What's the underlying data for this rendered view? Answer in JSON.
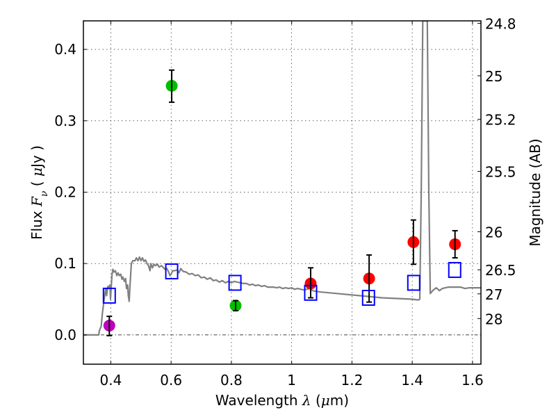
{
  "chart_data": {
    "type": "scatter",
    "title": "",
    "xlabel": "Wavelength  λ (μm)",
    "xlabel_parts": {
      "text": "Wavelength  ",
      "symbol": "λ",
      "unit_open": " (",
      "unit_mu": "μ",
      "unit_rest": "m)"
    },
    "ylabel": "Flux  Fν  ( μJy )",
    "ylabel_parts": {
      "text": "Flux  ",
      "symbol": "F",
      "sub": "ν",
      "unit_open": "  ( ",
      "unit_mu": "μ",
      "unit_rest": "Jy )"
    },
    "ylabel_right": "Magnitude (AB)",
    "xlim": [
      0.309,
      1.628
    ],
    "ylim": [
      -0.041,
      0.44
    ],
    "grid": true,
    "x_ticks": [
      {
        "value": 0.4,
        "label": "0.4"
      },
      {
        "value": 0.6,
        "label": "0.6"
      },
      {
        "value": 0.8,
        "label": "0.8"
      },
      {
        "value": 1.0,
        "label": "1"
      },
      {
        "value": 1.2,
        "label": "1.2"
      },
      {
        "value": 1.4,
        "label": "1.4"
      },
      {
        "value": 1.6,
        "label": "1.6"
      }
    ],
    "y_ticks": [
      {
        "value": 0.0,
        "label": "0.0"
      },
      {
        "value": 0.1,
        "label": "0.1"
      },
      {
        "value": 0.2,
        "label": "0.2"
      },
      {
        "value": 0.3,
        "label": "0.3"
      },
      {
        "value": 0.4,
        "label": "0.4"
      }
    ],
    "right_axis": {
      "conversion": "flux_uJy = 10^((23.9 - mag)/2.5)",
      "zeropoint": 23.9,
      "ticks": [
        {
          "mag": 24.8,
          "label": "24.8"
        },
        {
          "mag": 25.0,
          "label": "25"
        },
        {
          "mag": 25.2,
          "label": "25.2"
        },
        {
          "mag": 25.5,
          "label": "25.5"
        },
        {
          "mag": 26.0,
          "label": "26"
        },
        {
          "mag": 26.5,
          "label": "26.5"
        },
        {
          "mag": 27.0,
          "label": "27"
        },
        {
          "mag": 28.0,
          "label": "28"
        }
      ]
    },
    "zero_line": {
      "value": 0.0,
      "style": "dash-dot",
      "color": "#000000"
    },
    "series": [
      {
        "name": "model spectrum",
        "kind": "line",
        "color": "#808080",
        "points": [
          [
            0.309,
            0.0
          ],
          [
            0.35,
            0.0
          ],
          [
            0.36,
            0.0
          ],
          [
            0.362,
            0.006
          ],
          [
            0.368,
            0.012
          ],
          [
            0.372,
            0.03
          ],
          [
            0.378,
            0.05
          ],
          [
            0.383,
            0.065
          ],
          [
            0.386,
            0.055
          ],
          [
            0.39,
            0.068
          ],
          [
            0.394,
            0.067
          ],
          [
            0.397,
            0.07
          ],
          [
            0.399,
            0.05
          ],
          [
            0.401,
            0.065
          ],
          [
            0.404,
            0.085
          ],
          [
            0.407,
            0.092
          ],
          [
            0.41,
            0.088
          ],
          [
            0.415,
            0.09
          ],
          [
            0.42,
            0.083
          ],
          [
            0.424,
            0.087
          ],
          [
            0.428,
            0.083
          ],
          [
            0.433,
            0.085
          ],
          [
            0.437,
            0.078
          ],
          [
            0.44,
            0.081
          ],
          [
            0.445,
            0.075
          ],
          [
            0.449,
            0.079
          ],
          [
            0.452,
            0.065
          ],
          [
            0.456,
            0.07
          ],
          [
            0.458,
            0.055
          ],
          [
            0.461,
            0.047
          ],
          [
            0.463,
            0.065
          ],
          [
            0.468,
            0.1
          ],
          [
            0.473,
            0.104
          ],
          [
            0.48,
            0.104
          ],
          [
            0.485,
            0.108
          ],
          [
            0.49,
            0.104
          ],
          [
            0.495,
            0.109
          ],
          [
            0.5,
            0.104
          ],
          [
            0.505,
            0.108
          ],
          [
            0.51,
            0.103
          ],
          [
            0.515,
            0.105
          ],
          [
            0.52,
            0.1
          ],
          [
            0.525,
            0.097
          ],
          [
            0.53,
            0.09
          ],
          [
            0.533,
            0.1
          ],
          [
            0.538,
            0.094
          ],
          [
            0.543,
            0.099
          ],
          [
            0.548,
            0.097
          ],
          [
            0.555,
            0.099
          ],
          [
            0.56,
            0.095
          ],
          [
            0.568,
            0.097
          ],
          [
            0.575,
            0.094
          ],
          [
            0.58,
            0.092
          ],
          [
            0.586,
            0.093
          ],
          [
            0.592,
            0.088
          ],
          [
            0.596,
            0.083
          ],
          [
            0.6,
            0.085
          ],
          [
            0.605,
            0.09
          ],
          [
            0.612,
            0.09
          ],
          [
            0.62,
            0.091
          ],
          [
            0.626,
            0.087
          ],
          [
            0.632,
            0.093
          ],
          [
            0.64,
            0.089
          ],
          [
            0.65,
            0.088
          ],
          [
            0.66,
            0.085
          ],
          [
            0.67,
            0.086
          ],
          [
            0.68,
            0.083
          ],
          [
            0.69,
            0.084
          ],
          [
            0.7,
            0.08
          ],
          [
            0.71,
            0.081
          ],
          [
            0.72,
            0.078
          ],
          [
            0.73,
            0.08
          ],
          [
            0.74,
            0.076
          ],
          [
            0.75,
            0.077
          ],
          [
            0.76,
            0.074
          ],
          [
            0.77,
            0.076
          ],
          [
            0.78,
            0.073
          ],
          [
            0.79,
            0.075
          ],
          [
            0.8,
            0.073
          ],
          [
            0.81,
            0.075
          ],
          [
            0.82,
            0.074
          ],
          [
            0.83,
            0.073
          ],
          [
            0.84,
            0.072
          ],
          [
            0.85,
            0.072
          ],
          [
            0.86,
            0.07
          ],
          [
            0.87,
            0.071
          ],
          [
            0.88,
            0.069
          ],
          [
            0.89,
            0.07
          ],
          [
            0.9,
            0.068
          ],
          [
            0.91,
            0.069
          ],
          [
            0.92,
            0.067
          ],
          [
            0.93,
            0.067
          ],
          [
            0.94,
            0.067
          ],
          [
            0.95,
            0.066
          ],
          [
            0.96,
            0.067
          ],
          [
            0.97,
            0.065
          ],
          [
            0.98,
            0.066
          ],
          [
            0.99,
            0.065
          ],
          [
            1.0,
            0.066
          ],
          [
            1.01,
            0.064
          ],
          [
            1.02,
            0.065
          ],
          [
            1.03,
            0.064
          ],
          [
            1.04,
            0.063
          ],
          [
            1.05,
            0.064
          ],
          [
            1.06,
            0.065
          ],
          [
            1.07,
            0.062
          ],
          [
            1.08,
            0.061
          ],
          [
            1.1,
            0.06
          ],
          [
            1.15,
            0.058
          ],
          [
            1.2,
            0.056
          ],
          [
            1.25,
            0.054
          ],
          [
            1.3,
            0.052
          ],
          [
            1.35,
            0.051
          ],
          [
            1.4,
            0.05
          ],
          [
            1.42,
            0.049
          ],
          [
            1.425,
            0.05
          ],
          [
            1.43,
            0.2
          ],
          [
            1.435,
            0.44
          ],
          [
            1.45,
            0.44
          ],
          [
            1.455,
            0.2
          ],
          [
            1.46,
            0.058
          ],
          [
            1.47,
            0.063
          ],
          [
            1.48,
            0.066
          ],
          [
            1.49,
            0.062
          ],
          [
            1.5,
            0.065
          ],
          [
            1.52,
            0.067
          ],
          [
            1.54,
            0.067
          ],
          [
            1.56,
            0.067
          ],
          [
            1.575,
            0.065
          ],
          [
            1.59,
            0.066
          ],
          [
            1.628,
            0.066
          ]
        ]
      },
      {
        "name": "photometry (purple)",
        "kind": "points",
        "marker": "circle",
        "color": "#bf00bf",
        "points": [
          {
            "x": 0.395,
            "y": 0.013,
            "err_low": 0.014,
            "err_high": 0.013
          }
        ]
      },
      {
        "name": "photometry (green)",
        "kind": "points",
        "marker": "circle",
        "color": "#00bf00",
        "points": [
          {
            "x": 0.602,
            "y": 0.349,
            "err_low": 0.023,
            "err_high": 0.022
          },
          {
            "x": 0.814,
            "y": 0.041,
            "err_low": 0.007,
            "err_high": 0.007
          }
        ]
      },
      {
        "name": "photometry (red)",
        "kind": "points",
        "marker": "circle",
        "color": "#ff0000",
        "points": [
          {
            "x": 1.063,
            "y": 0.072,
            "err_low": 0.02,
            "err_high": 0.022
          },
          {
            "x": 1.257,
            "y": 0.079,
            "err_low": 0.033,
            "err_high": 0.033
          },
          {
            "x": 1.404,
            "y": 0.13,
            "err_low": 0.031,
            "err_high": 0.031
          },
          {
            "x": 1.542,
            "y": 0.127,
            "err_low": 0.019,
            "err_high": 0.019
          }
        ]
      },
      {
        "name": "model synthetic photometry",
        "kind": "points",
        "marker": "open-square",
        "color": "#0000ff",
        "points": [
          {
            "x": 0.395,
            "y": 0.055
          },
          {
            "x": 0.602,
            "y": 0.089
          },
          {
            "x": 0.812,
            "y": 0.073
          },
          {
            "x": 1.063,
            "y": 0.059
          },
          {
            "x": 1.255,
            "y": 0.052
          },
          {
            "x": 1.405,
            "y": 0.073
          },
          {
            "x": 1.541,
            "y": 0.091
          }
        ]
      }
    ]
  }
}
